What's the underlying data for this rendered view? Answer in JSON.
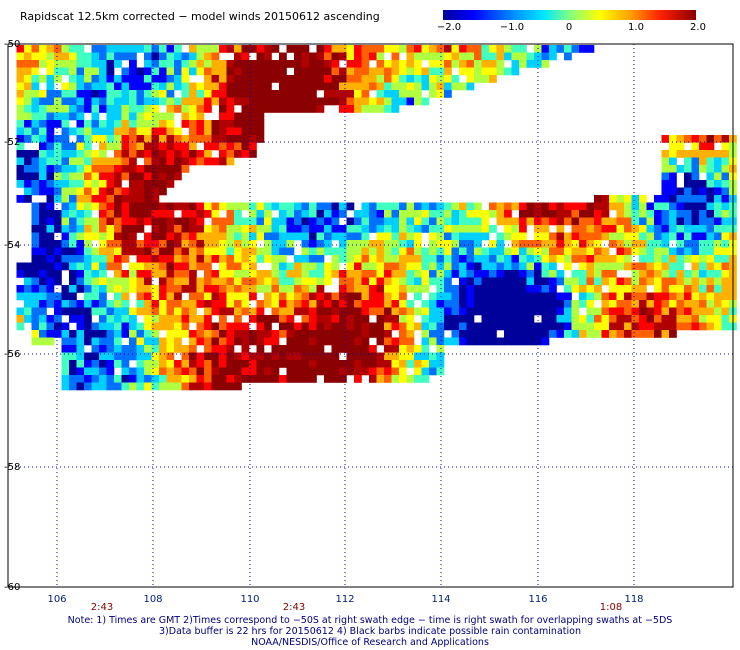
{
  "title": "Rapidscat 12.5km corrected − model winds 20150612 ascending",
  "colorbar": {
    "labels": [
      "−2.0",
      "−1.0",
      "0",
      "1.0",
      "2.0"
    ],
    "range": [
      -2.0,
      2.0
    ],
    "colors": [
      "#00009b",
      "#0000ff",
      "#0070ff",
      "#00d0ff",
      "#40ffc0",
      "#b0ff40",
      "#ffff00",
      "#ffb000",
      "#ff6000",
      "#ff0000",
      "#b00000",
      "#8b0000"
    ]
  },
  "map": {
    "lat_labels": [
      "-50",
      "-52",
      "-54",
      "-56",
      "-58",
      "-60"
    ],
    "lon_labels": [
      "106",
      "108",
      "110",
      "112",
      "114",
      "116",
      "118"
    ],
    "time_labels": [
      "2:43",
      "2:43",
      "1:08"
    ],
    "lat_range": [
      -60,
      -50
    ],
    "lon_range": [
      105.5,
      120
    ],
    "grid_color": "#0000c0"
  },
  "notes": [
    "Note: 1) Times are GMT 2)Times correspond to −50S at right swath edge − time is right swath for overlapping swaths at −5DS",
    "3)Data buffer is 22 hrs for 20150612 4) Black barbs indicate possible rain contamination",
    "NOAA/NESDIS/Office of Research and Applications"
  ]
}
